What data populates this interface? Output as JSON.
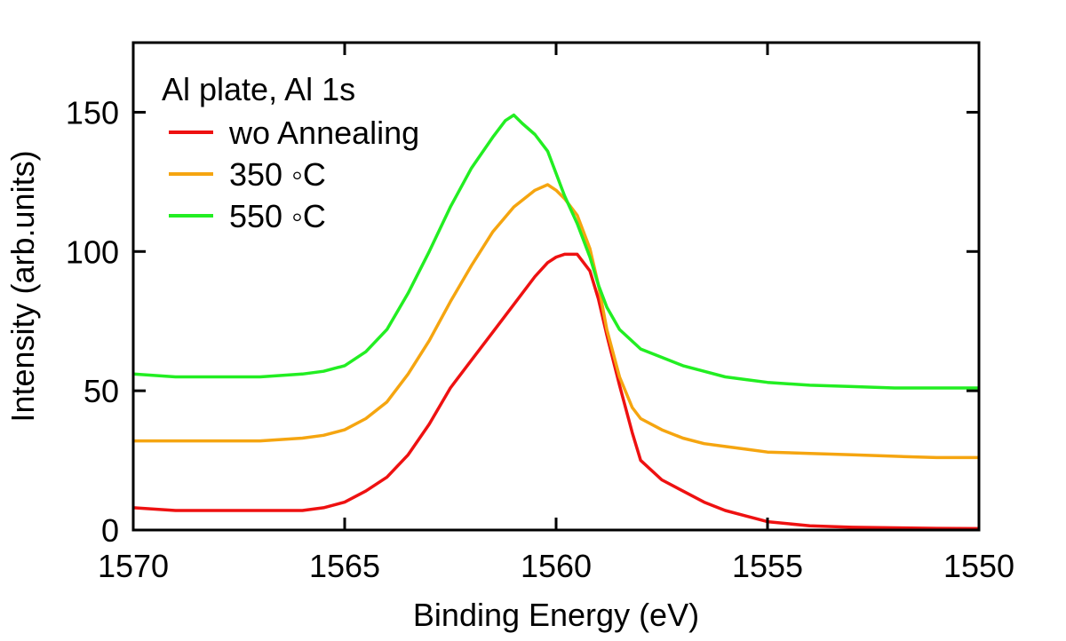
{
  "chart_data": {
    "type": "line",
    "title": "",
    "xlabel": "Binding Energy (eV)",
    "ylabel": "Intensity (arb.units)",
    "xlim": [
      1570,
      1550
    ],
    "ylim": [
      0,
      175
    ],
    "x_reversed": true,
    "grid": false,
    "xticks": [
      1570,
      1565,
      1560,
      1555,
      1550
    ],
    "yticks": [
      0,
      50,
      100,
      150
    ],
    "legend": {
      "placement": "top-left",
      "title": "Al plate, Al 1s"
    },
    "series": [
      {
        "name": "wo Annealing",
        "color": "#ee1111",
        "x": [
          1570,
          1569,
          1568,
          1567,
          1566,
          1565.5,
          1565,
          1564.5,
          1564,
          1563.5,
          1563,
          1562.5,
          1562,
          1561.5,
          1561,
          1560.5,
          1560.2,
          1560,
          1559.8,
          1559.5,
          1559.2,
          1559,
          1558.8,
          1558.5,
          1558.2,
          1558,
          1557.5,
          1557,
          1556.5,
          1556,
          1555.5,
          1555,
          1554,
          1553,
          1552,
          1551,
          1550
        ],
        "y": [
          8,
          7,
          7,
          7,
          7,
          8,
          10,
          14,
          19,
          27,
          38,
          51,
          61,
          71,
          81,
          91,
          96,
          98,
          99,
          99,
          93,
          83,
          70,
          52,
          35,
          25,
          18,
          14,
          10,
          7,
          5,
          3,
          1.5,
          1,
          0.8,
          0.6,
          0.5
        ]
      },
      {
        "name": "350 ◦C",
        "color": "#f5a510",
        "x": [
          1570,
          1569,
          1568,
          1567,
          1566,
          1565.5,
          1565,
          1564.5,
          1564,
          1563.5,
          1563,
          1562.5,
          1562,
          1561.5,
          1561,
          1560.5,
          1560.2,
          1560,
          1559.8,
          1559.5,
          1559.2,
          1559,
          1558.8,
          1558.5,
          1558.2,
          1558,
          1557.5,
          1557,
          1556.5,
          1556,
          1555.5,
          1555,
          1554,
          1553,
          1552,
          1551,
          1550
        ],
        "y": [
          32,
          32,
          32,
          32,
          33,
          34,
          36,
          40,
          46,
          56,
          68,
          82,
          95,
          107,
          116,
          122,
          124,
          122,
          119,
          113,
          101,
          88,
          72,
          55,
          44,
          40,
          36,
          33,
          31,
          30,
          29,
          28,
          27.5,
          27,
          26.5,
          26,
          26
        ]
      },
      {
        "name": "550 ◦C",
        "color": "#22ee22",
        "x": [
          1570,
          1569,
          1568,
          1567,
          1566,
          1565.5,
          1565,
          1564.5,
          1564,
          1563.5,
          1563,
          1562.5,
          1562,
          1561.5,
          1561.2,
          1561,
          1560.8,
          1560.5,
          1560.2,
          1560,
          1559.8,
          1559.5,
          1559.2,
          1559,
          1558.8,
          1558.5,
          1558,
          1557.5,
          1557,
          1556.5,
          1556,
          1555.5,
          1555,
          1554,
          1553,
          1552,
          1551,
          1550
        ],
        "y": [
          56,
          55,
          55,
          55,
          56,
          57,
          59,
          64,
          72,
          85,
          100,
          116,
          130,
          141,
          147,
          149,
          146,
          142,
          136,
          128,
          120,
          110,
          98,
          88,
          80,
          72,
          65,
          62,
          59,
          57,
          55,
          54,
          53,
          52,
          51.5,
          51,
          51,
          51
        ]
      }
    ]
  }
}
